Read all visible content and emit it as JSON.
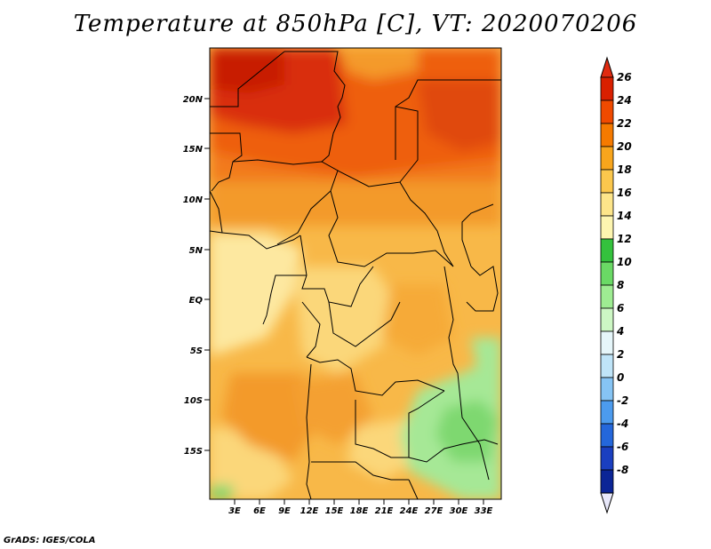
{
  "title": "Temperature at 850hPa [C], VT: 2020070206",
  "credit": "GrADS: IGES/COLA",
  "lat_labels": [
    "20N",
    "15N",
    "10N",
    "5N",
    "EQ",
    "5S",
    "10S",
    "15S"
  ],
  "lon_labels": [
    "3E",
    "6E",
    "9E",
    "12E",
    "15E",
    "18E",
    "21E",
    "24E",
    "27E",
    "30E",
    "33E"
  ],
  "colorbar": {
    "labels": [
      "26",
      "24",
      "22",
      "20",
      "18",
      "16",
      "14",
      "12",
      "10",
      "8",
      "6",
      "4",
      "2",
      "0",
      "-2",
      "-4",
      "-6",
      "-8"
    ],
    "colors": [
      "#a50000",
      "#d92000",
      "#f04a00",
      "#f57a00",
      "#f8a51c",
      "#fbc74d",
      "#fde58a",
      "#fdf5b0",
      "#34c23d",
      "#6ad965",
      "#9eec92",
      "#cdf7c4",
      "#e6f6fa",
      "#bfe4f8",
      "#86c4f4",
      "#4c9bee",
      "#2467db",
      "#1a3fc0",
      "#0b2596",
      "#040e5c"
    ],
    "min_arrow_color": "#e8e8fa",
    "max_arrow_color": "#e02a10"
  }
}
